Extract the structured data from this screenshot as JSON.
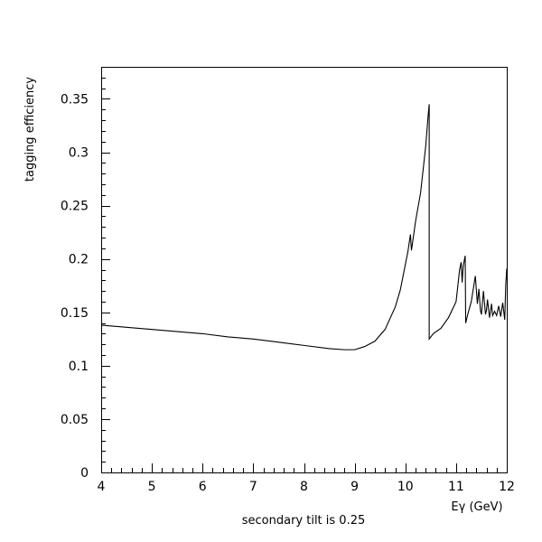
{
  "chart_data": {
    "type": "line",
    "xlabel": "Eγ (GeV)",
    "ylabel": "tagging efficiency",
    "subtitle": "secondary tilt is 0.25",
    "xlim": [
      4,
      12
    ],
    "ylim": [
      0,
      0.38
    ],
    "x_ticks": [
      4,
      5,
      6,
      7,
      8,
      9,
      10,
      11,
      12
    ],
    "x_tick_labels": [
      "4",
      "5",
      "6",
      "7",
      "8",
      "9",
      "10",
      "11",
      "12"
    ],
    "y_ticks": [
      0,
      0.05,
      0.1,
      0.15,
      0.2,
      0.25,
      0.3,
      0.35
    ],
    "y_tick_labels": [
      "0",
      "0.05",
      "0.1",
      "0.15",
      "0.2",
      "0.25",
      "0.3",
      "0.35"
    ],
    "grid": false,
    "legend": "none",
    "series": [
      {
        "x": [
          4.0,
          4.5,
          5.0,
          5.5,
          6.0,
          6.5,
          7.0,
          7.5,
          8.0,
          8.5,
          8.8,
          9.0,
          9.2,
          9.4,
          9.6,
          9.8,
          9.9,
          10.0,
          10.05,
          10.1,
          10.12,
          10.15,
          10.2,
          10.3,
          10.4,
          10.45,
          10.47,
          10.47,
          10.55,
          10.7,
          10.85,
          11.0,
          11.07,
          11.1,
          11.12,
          11.14,
          11.18,
          11.19,
          11.21,
          11.23,
          11.3,
          11.38,
          11.42,
          11.45,
          11.48,
          11.5,
          11.54,
          11.58,
          11.6,
          11.62,
          11.66,
          11.7,
          11.72,
          11.76,
          11.8,
          11.84,
          11.88,
          11.92,
          11.96,
          11.98,
          12.0
        ],
        "y": [
          0.138,
          0.136,
          0.134,
          0.132,
          0.13,
          0.127,
          0.125,
          0.122,
          0.119,
          0.116,
          0.115,
          0.115,
          0.118,
          0.123,
          0.134,
          0.155,
          0.171,
          0.195,
          0.207,
          0.223,
          0.208,
          0.218,
          0.235,
          0.262,
          0.305,
          0.335,
          0.345,
          0.125,
          0.13,
          0.135,
          0.145,
          0.16,
          0.19,
          0.197,
          0.178,
          0.193,
          0.203,
          0.14,
          0.144,
          0.148,
          0.16,
          0.184,
          0.158,
          0.172,
          0.152,
          0.148,
          0.17,
          0.148,
          0.152,
          0.162,
          0.145,
          0.158,
          0.147,
          0.151,
          0.147,
          0.156,
          0.146,
          0.159,
          0.143,
          0.176,
          0.191
        ]
      }
    ]
  }
}
